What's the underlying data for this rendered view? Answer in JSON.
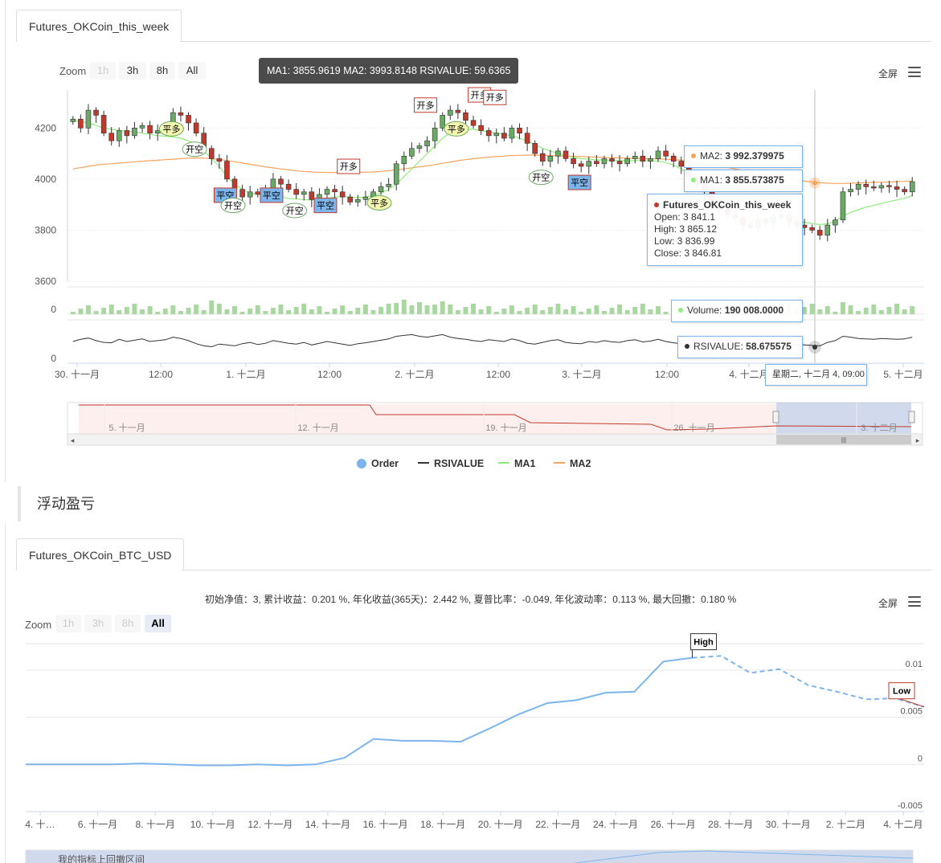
{
  "top_tab": {
    "label": "Futures_OKCoin_this_week"
  },
  "top_chart": {
    "zoom_label": "Zoom",
    "zoom_buttons": [
      "1h",
      "3h",
      "8h",
      "All"
    ],
    "fullscreen_label": "全屏",
    "header_tooltip": "MA1: 3855.9619 MA2: 3993.8148 RSIVALUE: 59.6365",
    "tooltip": {
      "ma2_label": "MA2:",
      "ma2_value": "3 992.379975",
      "ma1_label": "MA1:",
      "ma1_value": "3 855.573875",
      "series_name": "Futures_OKCoin_this_week",
      "open": "Open: 3 841.1",
      "high": "High: 3 865.12",
      "low": "Low: 3 836.99",
      "close": "Close: 3 846.81",
      "volume_label": "Volume:",
      "volume_value": "190 008.0000",
      "rsi_label": "RSIVALUE:",
      "rsi_value": "58.675575",
      "date": "星期二, 十二月 4, 09:00"
    },
    "colors": {
      "up": "#6aaa64",
      "down": "#c0392b",
      "ma1": "#90ed7d",
      "ma2": "#f7a35c",
      "rsi": "#333333",
      "order": "#7cb5ec"
    },
    "legend": [
      "Order",
      "RSIVALUE",
      "MA1",
      "MA2"
    ],
    "navigator_labels": [
      "5. 十一月",
      "12. 十一月",
      "19. 十一月",
      "26. 十一月",
      "3. 十二月"
    ]
  },
  "bottom_tab": {
    "label": "Futures_OKCoin_BTC_USD"
  },
  "section_title": "浮动盈亏",
  "bottom_chart": {
    "stats": "初始净值：3, 累计收益：0.201 %, 年化收益(365天)：2.442 %, 夏普比率：-0.049, 年化波动率：0.113 %, 最大回撤：0.180 %",
    "zoom_label": "Zoom",
    "zoom_buttons": [
      "1h",
      "3h",
      "8h",
      "All"
    ],
    "fullscreen_label": "全屏",
    "navigator_text": "我的指标上回撤区间"
  },
  "chart_data": [
    {
      "type": "candlestick",
      "title": "",
      "x_ticks": [
        "30. 十一月",
        "12:00",
        "1. 十二月",
        "12:00",
        "2. 十二月",
        "12:00",
        "3. 十二月",
        "12:00",
        "4. 十二月",
        "5. 十二月"
      ],
      "y_ticks": [
        4200,
        4000,
        3800,
        3600
      ],
      "ylim": [
        3600,
        4330
      ],
      "close": [
        4235,
        4200,
        4270,
        4250,
        4180,
        4150,
        4190,
        4170,
        4200,
        4210,
        4180,
        4190,
        4200,
        4260,
        4250,
        4220,
        4180,
        4120,
        4080,
        4070,
        4000,
        3960,
        3930,
        3950,
        3940,
        3960,
        4000,
        3980,
        3960,
        3940,
        3950,
        3920,
        3940,
        3960,
        3950,
        3930,
        3910,
        3920,
        3930,
        3950,
        3970,
        3980,
        4060,
        4090,
        4120,
        4130,
        4150,
        4200,
        4250,
        4270,
        4260,
        4230,
        4210,
        4190,
        4170,
        4180,
        4160,
        4200,
        4180,
        4140,
        4100,
        4070,
        4090,
        4110,
        4080,
        4060,
        4050,
        4070,
        4060,
        4080,
        4070,
        4060,
        4080,
        4090,
        4070,
        4080,
        4110,
        4090,
        4070,
        4050,
        4010,
        3980,
        3950,
        3900,
        3880,
        3860,
        3850,
        3820,
        3810,
        3840,
        3830,
        3850,
        3860,
        3830,
        3820,
        3810,
        3800,
        3780,
        3820,
        3840,
        3950,
        3960,
        3980,
        3970,
        3965,
        3975,
        3970,
        3960,
        3950,
        3990
      ],
      "ma1": [
        4230,
        4225,
        4220,
        4210,
        4200,
        4195,
        4190,
        4188,
        4185,
        4180,
        4175,
        4170,
        4168,
        4165,
        4160,
        4150,
        4135,
        4110,
        4080,
        4050,
        4010,
        3980,
        3960,
        3945,
        3940,
        3938,
        3935,
        3930,
        3925,
        3922,
        3920,
        3918,
        3920,
        3925,
        3930,
        3932,
        3930,
        3928,
        3930,
        3935,
        3945,
        3960,
        3980,
        4010,
        4040,
        4070,
        4100,
        4130,
        4160,
        4180,
        4190,
        4195,
        4195,
        4190,
        4185,
        4180,
        4175,
        4170,
        4160,
        4150,
        4135,
        4120,
        4110,
        4100,
        4092,
        4085,
        4080,
        4078,
        4075,
        4075,
        4073,
        4072,
        4072,
        4073,
        4072,
        4072,
        4070,
        4065,
        4055,
        4040,
        4020,
        3995,
        3970,
        3945,
        3920,
        3895,
        3875,
        3858,
        3850,
        3845,
        3843,
        3842,
        3840,
        3838,
        3835,
        3830,
        3826,
        3822,
        3825,
        3835,
        3855,
        3870,
        3880,
        3890,
        3897,
        3905,
        3912,
        3918,
        3925,
        3935
      ],
      "ma2": [
        4040,
        4045,
        4050,
        4055,
        4058,
        4060,
        4063,
        4065,
        4068,
        4070,
        4072,
        4074,
        4076,
        4078,
        4080,
        4082,
        4083,
        4082,
        4080,
        4077,
        4073,
        4068,
        4063,
        4058,
        4053,
        4048,
        4044,
        4040,
        4036,
        4032,
        4030,
        4028,
        4027,
        4026,
        4026,
        4026,
        4026,
        4026,
        4027,
        4028,
        4030,
        4033,
        4036,
        4040,
        4044,
        4048,
        4052,
        4057,
        4062,
        4067,
        4072,
        4076,
        4080,
        4083,
        4086,
        4088,
        4090,
        4092,
        4093,
        4094,
        4094,
        4093,
        4092,
        4091,
        4090,
        4089,
        4088,
        4087,
        4086,
        4085,
        4084,
        4083,
        4082,
        4081,
        4080,
        4080,
        4079,
        4078,
        4076,
        4074,
        4070,
        4066,
        4062,
        4057,
        4052,
        4046,
        4040,
        4034,
        4028,
        4022,
        4016,
        4011,
        4006,
        4001,
        3996,
        3992,
        3989,
        3986,
        3984,
        3983,
        3983,
        3984,
        3985,
        3986,
        3987,
        3988,
        3989,
        3990,
        3991,
        3992
      ],
      "rsi": [
        50,
        55,
        58,
        52,
        48,
        47,
        55,
        50,
        53,
        56,
        50,
        52,
        54,
        60,
        57,
        52,
        45,
        40,
        38,
        44,
        42,
        40,
        45,
        48,
        43,
        46,
        52,
        49,
        46,
        44,
        48,
        42,
        46,
        50,
        47,
        44,
        41,
        45,
        47,
        50,
        53,
        56,
        62,
        64,
        66,
        62,
        60,
        63,
        66,
        60,
        57,
        55,
        52,
        50,
        54,
        52,
        50,
        56,
        52,
        46,
        44,
        48,
        52,
        54,
        48,
        46,
        45,
        50,
        48,
        52,
        49,
        48,
        52,
        54,
        49,
        51,
        55,
        50,
        47,
        45,
        42,
        40,
        44,
        41,
        40,
        42,
        43,
        40,
        42,
        48,
        45,
        47,
        49,
        44,
        43,
        42,
        41,
        40,
        48,
        52,
        62,
        60,
        57,
        56,
        55,
        57,
        56,
        55,
        56,
        60
      ],
      "orders": [
        "平多",
        "开空",
        "平空",
        "开空",
        "平空",
        "开空",
        "平空",
        "开多",
        "平多",
        "开多",
        "平多",
        "开多",
        "开多",
        "开空",
        "平空"
      ]
    },
    {
      "type": "line",
      "title": "",
      "x_ticks": [
        "4. 十…",
        "6. 十一月",
        "8. 十一月",
        "10. 十一月",
        "12. 十一月",
        "14. 十一月",
        "16. 十一月",
        "18. 十一月",
        "20. 十一月",
        "22. 十一月",
        "24. 十一月",
        "26. 十一月",
        "28. 十一月",
        "30. 十一月",
        "2. 十二月",
        "4. 十二月"
      ],
      "y_ticks": [
        0.01,
        0.005,
        0,
        -0.005
      ],
      "ylim": [
        -0.005,
        0.0105
      ],
      "values": [
        0,
        0,
        0,
        0,
        0.0001,
        0,
        -0.0001,
        -0.0001,
        0,
        -0.0001,
        0,
        0.0007,
        0.0027,
        0.0025,
        0.0025,
        0.0024,
        0.0038,
        0.0053,
        0.0065,
        0.0068,
        0.0076,
        0.0077,
        0.0109,
        0.0113,
        0.0115,
        0.0097,
        0.0101,
        0.0084,
        0.0077,
        0.0069,
        0.007,
        0.0061
      ],
      "dashed_from_index": 23,
      "annotations": [
        {
          "label": "High",
          "index": 23
        },
        {
          "label": "Low",
          "index": 31
        }
      ]
    }
  ]
}
